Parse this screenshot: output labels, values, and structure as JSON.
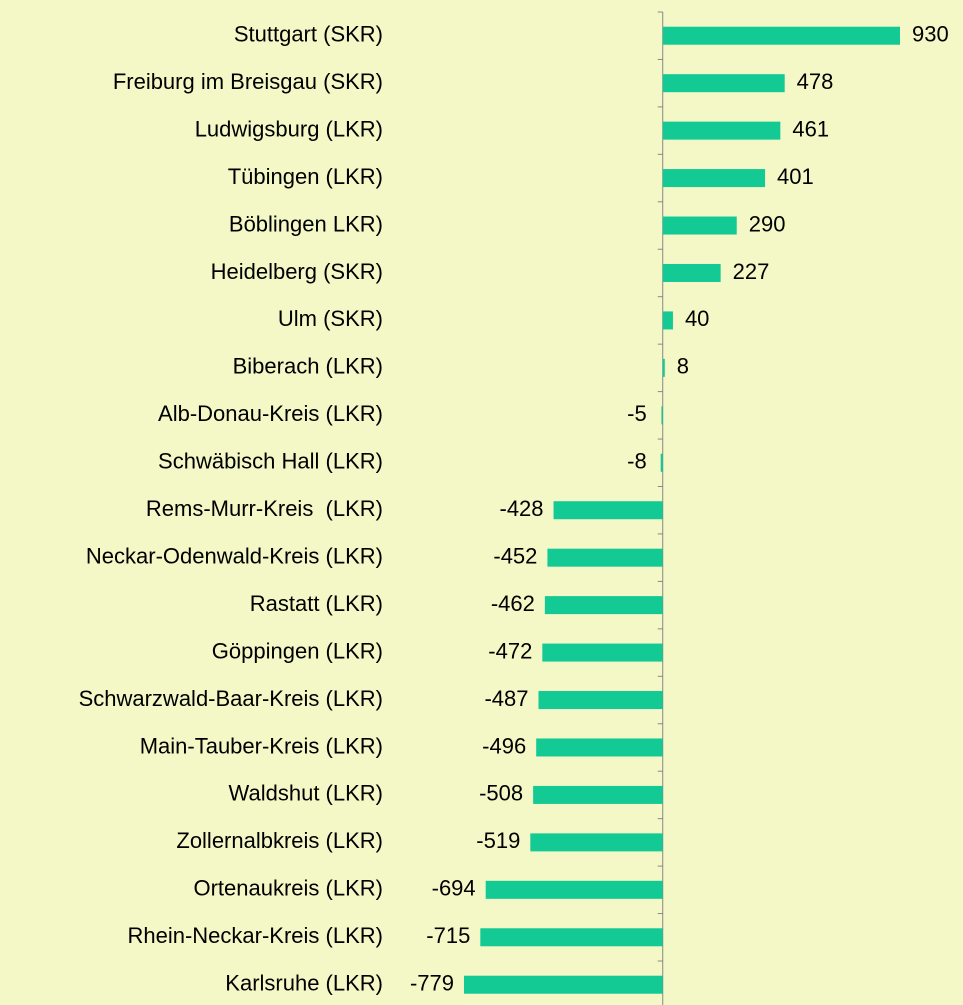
{
  "chart_data": {
    "type": "bar",
    "orientation": "horizontal",
    "color": "#13c994",
    "categories": [
      "Stuttgart (SKR)",
      "Freiburg im Breisgau (SKR)",
      "Ludwigsburg (LKR)",
      "Tübingen (LKR)",
      "Böblingen LKR)",
      "Heidelberg (SKR)",
      "Ulm (SKR)",
      "Biberach (LKR)",
      "Alb-Donau-Kreis (LKR)",
      "Schwäbisch Hall (LKR)",
      "Rems-Murr-Kreis  (LKR)",
      "Neckar-Odenwald-Kreis (LKR)",
      "Rastatt (LKR)",
      "Göppingen (LKR)",
      "Schwarzwald-Baar-Kreis (LKR)",
      "Main-Tauber-Kreis (LKR)",
      "Waldshut (LKR)",
      "Zollernalbkreis (LKR)",
      "Ortenaukreis (LKR)",
      "Rhein-Neckar-Kreis (LKR)",
      "Karlsruhe (LKR)"
    ],
    "values": [
      930,
      478,
      461,
      401,
      290,
      227,
      40,
      8,
      -5,
      -8,
      -428,
      -452,
      -462,
      -472,
      -487,
      -496,
      -508,
      -519,
      -694,
      -715,
      -779
    ]
  }
}
